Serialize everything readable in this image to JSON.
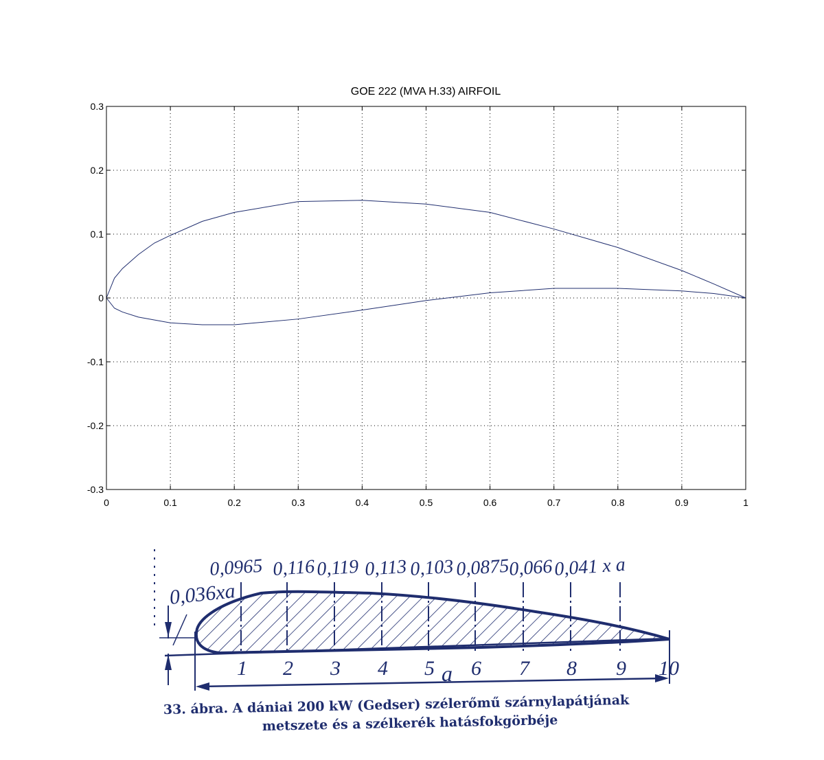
{
  "chart_data": {
    "type": "line",
    "title": "GOE 222 (MVA H.33) AIRFOIL",
    "xlabel": "",
    "ylabel": "",
    "xlim": [
      0,
      1
    ],
    "ylim": [
      -0.3,
      0.3
    ],
    "x_ticks": [
      "0",
      "0.1",
      "0.2",
      "0.3",
      "0.4",
      "0.5",
      "0.6",
      "0.7",
      "0.8",
      "0.9",
      "1"
    ],
    "y_ticks": [
      "0.3",
      "0.2",
      "0.1",
      "0",
      "-0.1",
      "-0.2",
      "-0.3"
    ],
    "grid": true,
    "line_color": "#1f2d6e",
    "series": [
      {
        "x": [
          0,
          0.0125,
          0.025,
          0.05,
          0.075,
          0.1,
          0.15,
          0.2,
          0.3,
          0.4,
          0.5,
          0.6,
          0.7,
          0.8,
          0.9,
          0.95,
          1.0
        ],
        "y": [
          0,
          0.031,
          0.046,
          0.068,
          0.086,
          0.098,
          0.12,
          0.134,
          0.151,
          0.153,
          0.147,
          0.134,
          0.108,
          0.079,
          0.043,
          0.022,
          0
        ]
      },
      {
        "x": [
          0,
          0.0125,
          0.025,
          0.05,
          0.1,
          0.15,
          0.2,
          0.3,
          0.4,
          0.5,
          0.6,
          0.7,
          0.8,
          0.9,
          0.95,
          1.0
        ],
        "y": [
          0,
          -0.016,
          -0.022,
          -0.03,
          -0.039,
          -0.042,
          -0.042,
          -0.033,
          -0.019,
          -0.004,
          0.008,
          0.015,
          0.015,
          0.011,
          0.007,
          0
        ]
      }
    ]
  },
  "scan": {
    "top_labels": [
      "0,0965",
      "0,116",
      "0,119",
      "0,113",
      "0,103",
      "0,0875",
      "0,066",
      "0,041 x a"
    ],
    "le_label": "0,036xa",
    "station_labels": [
      "1",
      "2",
      "3",
      "4",
      "5",
      "6",
      "7",
      "8",
      "9",
      "10"
    ],
    "chord_label": "a",
    "caption_line1": "33. ábra. A dániai 200 kW (Gedser) szélerőmű szárnylapátjának",
    "caption_line2": "metszete és a szélkerék hatásfokgörbéje",
    "ink_color": "#1f2d6e"
  }
}
